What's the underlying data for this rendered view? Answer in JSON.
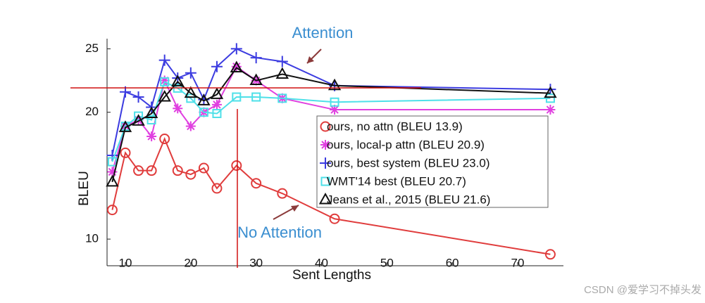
{
  "chart_data": {
    "type": "line",
    "xlabel": "Sent Lengths",
    "ylabel": "BLEU",
    "annotations": [
      "Attention",
      "No Attention"
    ],
    "watermark": "CSDN @爱学习不掉头发",
    "x": [
      8,
      10,
      12,
      14,
      16,
      18,
      20,
      22,
      24,
      27,
      30,
      34,
      42,
      75
    ],
    "xlim": [
      7.2,
      77
    ],
    "xticks": [
      10,
      20,
      30,
      40,
      50,
      60,
      70
    ],
    "ylim": [
      7.9,
      25.8
    ],
    "yticks": [
      10,
      20,
      25
    ],
    "legend": "right",
    "series": [
      {
        "name": "ours, no attn (BLEU 13.9)",
        "color": "#e03c3c",
        "marker": "circle",
        "values": [
          12.3,
          16.8,
          15.4,
          15.4,
          17.9,
          15.4,
          15.1,
          15.6,
          14.0,
          15.8,
          14.4,
          13.6,
          11.6,
          8.8
        ]
      },
      {
        "name": "ours, local-p attn (BLEU 20.9)",
        "color": "#e040e0",
        "marker": "asterisk",
        "values": [
          15.3,
          18.9,
          19.4,
          18.1,
          22.5,
          20.3,
          18.9,
          20.0,
          20.6,
          23.6,
          22.5,
          21.1,
          20.2,
          20.2
        ]
      },
      {
        "name": "ours, best system (BLEU 23.0)",
        "color": "#3c3ce0",
        "marker": "plus",
        "values": [
          16.6,
          21.6,
          21.2,
          20.4,
          24.1,
          22.7,
          23.1,
          21.0,
          23.6,
          25.0,
          24.3,
          24.0,
          22.1,
          21.8
        ]
      },
      {
        "name": "WMT'14 best (BLEU 20.7)",
        "color": "#4ee0e8",
        "marker": "square",
        "values": [
          16.1,
          18.9,
          19.7,
          19.4,
          22.4,
          21.9,
          21.1,
          20.0,
          19.9,
          21.2,
          21.2,
          21.1,
          20.8,
          21.1
        ]
      },
      {
        "name": "Jeans et al., 2015 (BLEU 21.6)",
        "color": "#111111",
        "marker": "triangle",
        "values": [
          14.5,
          18.8,
          19.3,
          19.9,
          21.2,
          22.4,
          21.5,
          20.9,
          21.4,
          23.5,
          22.5,
          23.0,
          22.1,
          21.5
        ]
      }
    ]
  }
}
